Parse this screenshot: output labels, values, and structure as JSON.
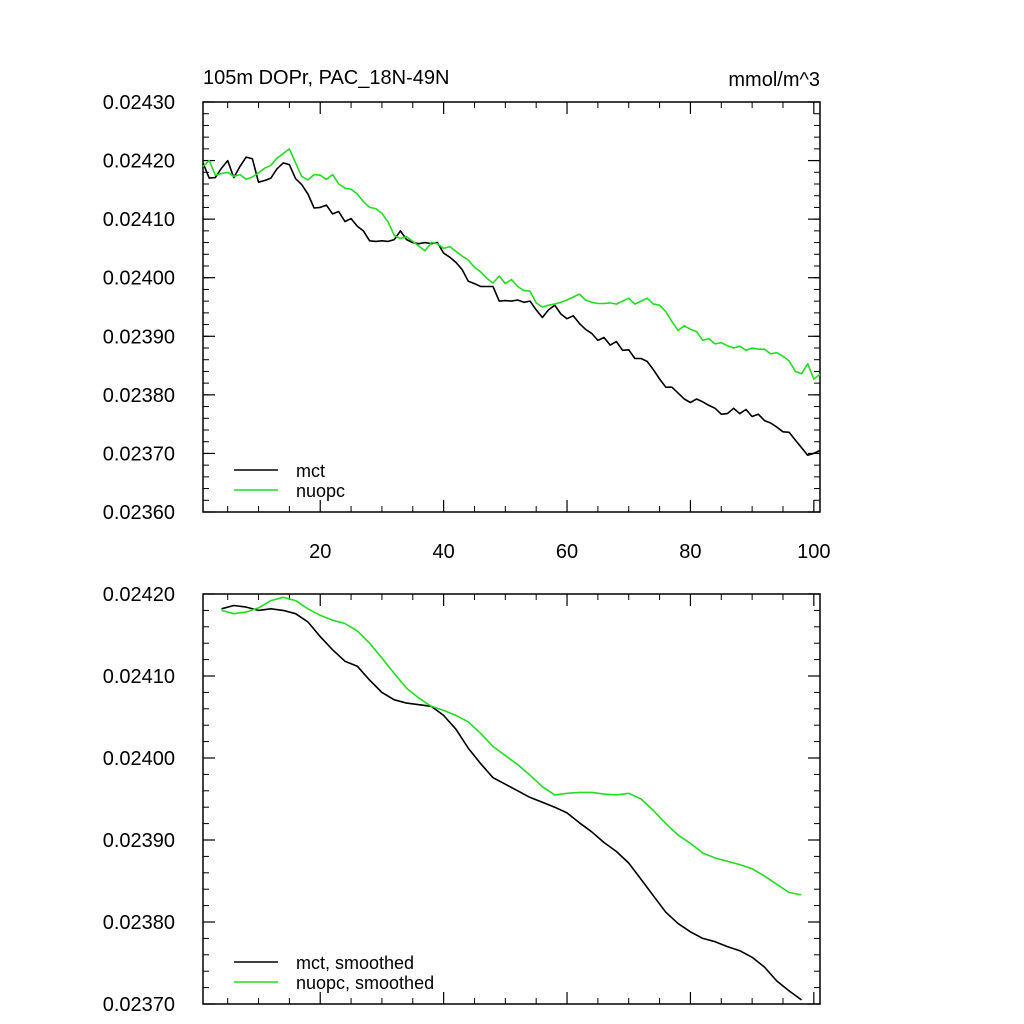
{
  "colors": {
    "mct": "#000000",
    "nuopc": "#22dd22",
    "axes": "#000000",
    "background": "#ffffff"
  },
  "chart_data": [
    {
      "type": "line",
      "title": "105m DOPr, PAC_18N-49N",
      "units": "mmol/m^3",
      "xlabel": "",
      "ylabel": "",
      "xlim": [
        1,
        101
      ],
      "ylim": [
        0.0236,
        0.0243
      ],
      "xticks": [
        20,
        40,
        60,
        80,
        100
      ],
      "xtick_labels": [
        "20",
        "40",
        "60",
        "80",
        "100"
      ],
      "yticks": [
        0.0236,
        0.0237,
        0.0238,
        0.0239,
        0.024,
        0.0241,
        0.0242,
        0.0243
      ],
      "ytick_labels": [
        "0.02360",
        "0.02370",
        "0.02380",
        "0.02390",
        "0.02400",
        "0.02410",
        "0.02420",
        "0.02430"
      ],
      "grid": false,
      "legend": "bottom-left",
      "x": [
        1,
        2,
        3,
        4,
        5,
        6,
        7,
        8,
        9,
        10,
        11,
        12,
        13,
        14,
        15,
        16,
        17,
        18,
        19,
        20,
        21,
        22,
        23,
        24,
        25,
        26,
        27,
        28,
        29,
        30,
        31,
        32,
        33,
        34,
        35,
        36,
        37,
        38,
        39,
        40,
        41,
        42,
        43,
        44,
        45,
        46,
        47,
        48,
        49,
        50,
        51,
        52,
        53,
        54,
        55,
        56,
        57,
        58,
        59,
        60,
        61,
        62,
        63,
        64,
        65,
        66,
        67,
        68,
        69,
        70,
        71,
        72,
        73,
        74,
        75,
        76,
        77,
        78,
        79,
        80,
        81,
        82,
        83,
        84,
        85,
        86,
        87,
        88,
        89,
        90,
        91,
        92,
        93,
        94,
        95,
        96,
        97,
        98,
        99,
        100,
        101
      ],
      "series": [
        {
          "name": "mct",
          "values": [
            0.024196,
            0.02417,
            0.024171,
            0.024187,
            0.0242,
            0.024171,
            0.02419,
            0.024206,
            0.024203,
            0.024163,
            0.024166,
            0.02417,
            0.024186,
            0.024196,
            0.024193,
            0.024169,
            0.024159,
            0.024143,
            0.024119,
            0.02412,
            0.024124,
            0.024109,
            0.024113,
            0.024096,
            0.024101,
            0.024088,
            0.02408,
            0.024063,
            0.024062,
            0.024063,
            0.024062,
            0.024065,
            0.02408,
            0.024065,
            0.02406,
            0.024058,
            0.02406,
            0.024058,
            0.02406,
            0.024042,
            0.024035,
            0.024026,
            0.024014,
            0.023994,
            0.02399,
            0.023985,
            0.023985,
            0.023985,
            0.02396,
            0.023961,
            0.02396,
            0.023962,
            0.023958,
            0.02396,
            0.023945,
            0.023932,
            0.023945,
            0.023953,
            0.023938,
            0.02393,
            0.023935,
            0.023922,
            0.023912,
            0.023905,
            0.023893,
            0.023898,
            0.023885,
            0.023891,
            0.023876,
            0.023877,
            0.023862,
            0.023862,
            0.023857,
            0.023843,
            0.023827,
            0.023813,
            0.023813,
            0.023803,
            0.023793,
            0.023787,
            0.023793,
            0.023788,
            0.023782,
            0.023777,
            0.023767,
            0.023768,
            0.023777,
            0.023768,
            0.023775,
            0.023763,
            0.023767,
            0.023756,
            0.023752,
            0.023745,
            0.023737,
            0.023736,
            0.023723,
            0.02371,
            0.023697,
            0.0237,
            0.023705
          ]
        },
        {
          "name": "nuopc",
          "values": [
            0.02419,
            0.0242,
            0.024175,
            0.024178,
            0.02418,
            0.024173,
            0.024176,
            0.024168,
            0.024172,
            0.024179,
            0.024187,
            0.024192,
            0.024204,
            0.024212,
            0.02422,
            0.024196,
            0.024173,
            0.024167,
            0.024176,
            0.024175,
            0.024168,
            0.024176,
            0.02416,
            0.024153,
            0.024151,
            0.024143,
            0.02413,
            0.02412,
            0.024118,
            0.02411,
            0.024095,
            0.024072,
            0.024067,
            0.02407,
            0.024062,
            0.024054,
            0.024046,
            0.02406,
            0.024058,
            0.02405,
            0.024053,
            0.024045,
            0.024037,
            0.02403,
            0.024018,
            0.02401,
            0.023999,
            0.023991,
            0.024003,
            0.02399,
            0.023997,
            0.023985,
            0.023978,
            0.023977,
            0.023957,
            0.02395,
            0.023953,
            0.023955,
            0.023958,
            0.023962,
            0.023967,
            0.023972,
            0.023962,
            0.023958,
            0.023956,
            0.023956,
            0.023957,
            0.023955,
            0.02396,
            0.023965,
            0.023955,
            0.02396,
            0.023965,
            0.023955,
            0.023953,
            0.023942,
            0.023925,
            0.02391,
            0.023918,
            0.023912,
            0.023908,
            0.023893,
            0.023896,
            0.023887,
            0.023889,
            0.023884,
            0.02388,
            0.023883,
            0.023876,
            0.02388,
            0.023878,
            0.023878,
            0.02387,
            0.023872,
            0.023866,
            0.023858,
            0.02384,
            0.023836,
            0.023853,
            0.023827,
            0.023835
          ]
        }
      ]
    },
    {
      "type": "line",
      "title": "",
      "xlabel": "",
      "ylabel": "",
      "xlim": [
        1,
        101
      ],
      "ylim": [
        0.0237,
        0.0242
      ],
      "xticks": [
        20,
        40,
        60,
        80,
        100
      ],
      "yticks": [
        0.0237,
        0.0238,
        0.0239,
        0.024,
        0.0241,
        0.0242
      ],
      "ytick_labels": [
        "0.02370",
        "0.02380",
        "0.02390",
        "0.02400",
        "0.02410",
        "0.02420"
      ],
      "grid": false,
      "legend": "bottom-left",
      "x": [
        4,
        6,
        8,
        10,
        12,
        14,
        16,
        18,
        20,
        22,
        24,
        26,
        28,
        30,
        32,
        34,
        36,
        38,
        40,
        42,
        44,
        46,
        48,
        50,
        52,
        54,
        56,
        58,
        60,
        62,
        64,
        66,
        68,
        70,
        72,
        74,
        76,
        78,
        80,
        82,
        84,
        86,
        88,
        90,
        92,
        94,
        96,
        98
      ],
      "series": [
        {
          "name": "mct, smoothed",
          "values": [
            0.024182,
            0.024186,
            0.024184,
            0.02418,
            0.024182,
            0.02418,
            0.024176,
            0.024166,
            0.024148,
            0.024132,
            0.024118,
            0.024112,
            0.024095,
            0.02408,
            0.024071,
            0.024067,
            0.024065,
            0.024063,
            0.024052,
            0.024035,
            0.024012,
            0.023993,
            0.023976,
            0.023968,
            0.02396,
            0.023952,
            0.023946,
            0.02394,
            0.023933,
            0.023921,
            0.02391,
            0.023897,
            0.023886,
            0.023872,
            0.023852,
            0.023832,
            0.023812,
            0.023798,
            0.023788,
            0.02378,
            0.023776,
            0.02377,
            0.023765,
            0.023757,
            0.023745,
            0.023728,
            0.023716,
            0.023705
          ]
        },
        {
          "name": "nuopc, smoothed",
          "values": [
            0.02418,
            0.024176,
            0.024178,
            0.024183,
            0.024192,
            0.024196,
            0.024192,
            0.024182,
            0.024174,
            0.024168,
            0.024164,
            0.024155,
            0.02414,
            0.024122,
            0.024103,
            0.024085,
            0.024073,
            0.024063,
            0.024058,
            0.024052,
            0.024044,
            0.02403,
            0.024014,
            0.024003,
            0.023992,
            0.023979,
            0.023965,
            0.023955,
            0.023957,
            0.023958,
            0.023958,
            0.023956,
            0.023955,
            0.023957,
            0.02395,
            0.023936,
            0.02392,
            0.023906,
            0.023896,
            0.023884,
            0.023878,
            0.023874,
            0.02387,
            0.023865,
            0.023856,
            0.023846,
            0.023836,
            0.023833
          ]
        }
      ]
    }
  ]
}
